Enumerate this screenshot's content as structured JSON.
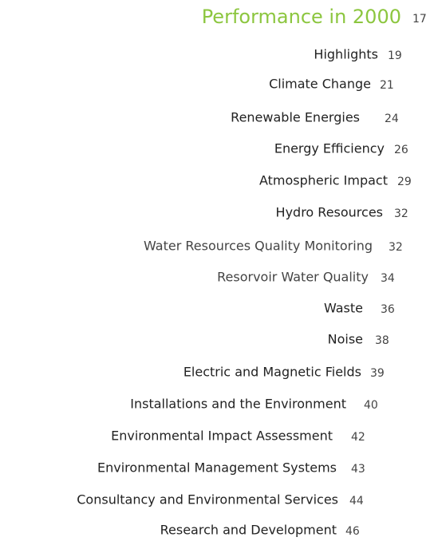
{
  "entries": [
    {
      "title": "Performance in 2000",
      "page": 17
    },
    {
      "title": "Highlights",
      "page": 19
    },
    {
      "title": "Climate Change",
      "page": 21
    },
    {
      "title": "Renewable Energies",
      "page": 24
    },
    {
      "title": "Energy Efficiency",
      "page": 26
    },
    {
      "title": "Atmospheric Impact",
      "page": 29
    },
    {
      "title": "Hydro Resources",
      "page": 32
    },
    {
      "title": "Water Resources Quality Monitoring",
      "page": 32
    },
    {
      "title": "Resorvoir Water Quality",
      "page": 34
    },
    {
      "title": "Waste",
      "page": 36
    },
    {
      "title": "Noise",
      "page": 38
    },
    {
      "title": "Electric and Magnetic Fields",
      "page": 39
    },
    {
      "title": "Installations and the Environment",
      "page": 40
    },
    {
      "title": "Environmental Impact Assessment",
      "page": 42
    },
    {
      "title": "Environmental Management Systems",
      "page": 43
    },
    {
      "title": "Consultancy and Environmental Services",
      "page": 44
    },
    {
      "title": "Research and Development",
      "page": 46
    }
  ]
}
